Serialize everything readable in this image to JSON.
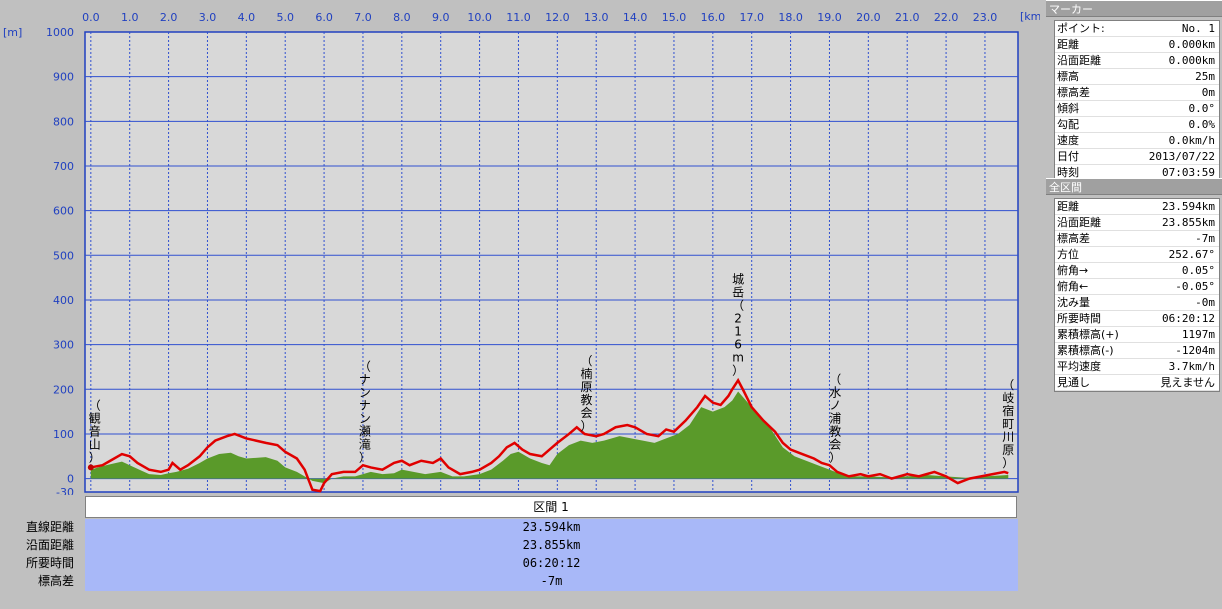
{
  "chart_data": {
    "type": "area",
    "xunit": "[km]",
    "yunit": "[m]",
    "xlim": [
      -0.15,
      23.85
    ],
    "ylim": [
      -30,
      1000
    ],
    "xticks": [
      0,
      1,
      2,
      3,
      4,
      5,
      6,
      7,
      8,
      9,
      10,
      11,
      12,
      13,
      14,
      15,
      16,
      17,
      18,
      19,
      20,
      21,
      22,
      23
    ],
    "xtick_labels": [
      "0.0",
      "1.0",
      "2.0",
      "3.0",
      "4.0",
      "5.0",
      "6.0",
      "7.0",
      "8.0",
      "9.0",
      "10.0",
      "11.0",
      "12.0",
      "13.0",
      "14.0",
      "15.0",
      "16.0",
      "17.0",
      "18.0",
      "19.0",
      "20.0",
      "21.0",
      "22.0",
      "23.0"
    ],
    "yticks": [
      -30,
      0,
      100,
      200,
      300,
      400,
      500,
      600,
      700,
      800,
      900,
      1000
    ],
    "ytick_labels": [
      "-30",
      "0",
      "100",
      "200",
      "300",
      "400",
      "500",
      "600",
      "700",
      "800",
      "900",
      "1000"
    ],
    "grid": true,
    "series": [
      {
        "name": "",
        "color": "#e00000",
        "points": [
          [
            0,
            25
          ],
          [
            0.3,
            30
          ],
          [
            0.5,
            40
          ],
          [
            0.8,
            55
          ],
          [
            1.0,
            50
          ],
          [
            1.2,
            35
          ],
          [
            1.5,
            20
          ],
          [
            1.8,
            15
          ],
          [
            2.0,
            20
          ],
          [
            2.1,
            35
          ],
          [
            2.3,
            20
          ],
          [
            2.5,
            30
          ],
          [
            2.8,
            50
          ],
          [
            3.0,
            70
          ],
          [
            3.2,
            85
          ],
          [
            3.5,
            95
          ],
          [
            3.7,
            100
          ],
          [
            4.0,
            90
          ],
          [
            4.5,
            80
          ],
          [
            4.8,
            75
          ],
          [
            5.0,
            60
          ],
          [
            5.3,
            45
          ],
          [
            5.5,
            20
          ],
          [
            5.7,
            -25
          ],
          [
            5.9,
            -28
          ],
          [
            6.0,
            -10
          ],
          [
            6.2,
            10
          ],
          [
            6.5,
            15
          ],
          [
            6.8,
            15
          ],
          [
            7.0,
            30
          ],
          [
            7.2,
            25
          ],
          [
            7.5,
            20
          ],
          [
            7.8,
            35
          ],
          [
            8.0,
            40
          ],
          [
            8.2,
            30
          ],
          [
            8.5,
            40
          ],
          [
            8.8,
            35
          ],
          [
            9.0,
            45
          ],
          [
            9.2,
            25
          ],
          [
            9.5,
            10
          ],
          [
            9.8,
            15
          ],
          [
            10.0,
            20
          ],
          [
            10.3,
            35
          ],
          [
            10.5,
            50
          ],
          [
            10.7,
            70
          ],
          [
            10.9,
            80
          ],
          [
            11.1,
            65
          ],
          [
            11.3,
            55
          ],
          [
            11.6,
            50
          ],
          [
            11.8,
            65
          ],
          [
            12.0,
            80
          ],
          [
            12.3,
            100
          ],
          [
            12.5,
            115
          ],
          [
            12.7,
            100
          ],
          [
            13.0,
            95
          ],
          [
            13.2,
            100
          ],
          [
            13.5,
            115
          ],
          [
            13.8,
            120
          ],
          [
            14.0,
            115
          ],
          [
            14.3,
            100
          ],
          [
            14.6,
            95
          ],
          [
            14.8,
            110
          ],
          [
            15.0,
            105
          ],
          [
            15.3,
            130
          ],
          [
            15.6,
            160
          ],
          [
            15.8,
            185
          ],
          [
            16.0,
            170
          ],
          [
            16.2,
            165
          ],
          [
            16.4,
            185
          ],
          [
            16.5,
            200
          ],
          [
            16.65,
            220
          ],
          [
            16.8,
            195
          ],
          [
            17.0,
            160
          ],
          [
            17.3,
            130
          ],
          [
            17.6,
            105
          ],
          [
            17.8,
            80
          ],
          [
            18.0,
            65
          ],
          [
            18.3,
            55
          ],
          [
            18.6,
            45
          ],
          [
            18.8,
            35
          ],
          [
            19.0,
            30
          ],
          [
            19.2,
            15
          ],
          [
            19.5,
            5
          ],
          [
            19.8,
            10
          ],
          [
            20.0,
            5
          ],
          [
            20.3,
            10
          ],
          [
            20.6,
            0
          ],
          [
            20.8,
            5
          ],
          [
            21.0,
            10
          ],
          [
            21.3,
            5
          ],
          [
            21.5,
            10
          ],
          [
            21.7,
            15
          ],
          [
            22.0,
            5
          ],
          [
            22.3,
            -10
          ],
          [
            22.6,
            0
          ],
          [
            22.9,
            5
          ],
          [
            23.2,
            10
          ],
          [
            23.5,
            15
          ],
          [
            23.6,
            12
          ]
        ]
      },
      {
        "name": "",
        "color": "#5a9a2a",
        "points": [
          [
            0,
            20
          ],
          [
            0.3,
            28
          ],
          [
            0.5,
            32
          ],
          [
            0.8,
            38
          ],
          [
            1.0,
            30
          ],
          [
            1.3,
            18
          ],
          [
            1.5,
            10
          ],
          [
            1.8,
            8
          ],
          [
            2.0,
            12
          ],
          [
            2.2,
            15
          ],
          [
            2.5,
            22
          ],
          [
            2.8,
            35
          ],
          [
            3.0,
            45
          ],
          [
            3.3,
            55
          ],
          [
            3.6,
            58
          ],
          [
            3.8,
            50
          ],
          [
            4.0,
            45
          ],
          [
            4.5,
            48
          ],
          [
            4.8,
            40
          ],
          [
            5.0,
            25
          ],
          [
            5.3,
            15
          ],
          [
            5.5,
            5
          ],
          [
            5.7,
            -5
          ],
          [
            6.0,
            -10
          ],
          [
            6.2,
            0
          ],
          [
            6.5,
            5
          ],
          [
            6.8,
            5
          ],
          [
            7.0,
            10
          ],
          [
            7.2,
            15
          ],
          [
            7.5,
            10
          ],
          [
            7.8,
            12
          ],
          [
            8.0,
            20
          ],
          [
            8.3,
            15
          ],
          [
            8.6,
            10
          ],
          [
            9.0,
            15
          ],
          [
            9.3,
            5
          ],
          [
            9.6,
            5
          ],
          [
            10.0,
            10
          ],
          [
            10.3,
            20
          ],
          [
            10.6,
            40
          ],
          [
            10.8,
            55
          ],
          [
            11.0,
            60
          ],
          [
            11.3,
            45
          ],
          [
            11.6,
            35
          ],
          [
            11.8,
            30
          ],
          [
            12.0,
            55
          ],
          [
            12.3,
            75
          ],
          [
            12.6,
            85
          ],
          [
            12.9,
            80
          ],
          [
            13.2,
            85
          ],
          [
            13.6,
            95
          ],
          [
            13.9,
            90
          ],
          [
            14.2,
            85
          ],
          [
            14.5,
            80
          ],
          [
            14.8,
            90
          ],
          [
            15.1,
            100
          ],
          [
            15.4,
            120
          ],
          [
            15.7,
            160
          ],
          [
            16.0,
            150
          ],
          [
            16.3,
            160
          ],
          [
            16.5,
            175
          ],
          [
            16.65,
            195
          ],
          [
            16.9,
            170
          ],
          [
            17.2,
            140
          ],
          [
            17.5,
            110
          ],
          [
            17.8,
            70
          ],
          [
            18.1,
            50
          ],
          [
            18.4,
            40
          ],
          [
            18.7,
            30
          ],
          [
            19.0,
            20
          ],
          [
            19.3,
            10
          ],
          [
            19.6,
            5
          ],
          [
            20.0,
            5
          ],
          [
            20.5,
            3
          ],
          [
            21.0,
            5
          ],
          [
            21.5,
            8
          ],
          [
            22.0,
            5
          ],
          [
            22.5,
            2
          ],
          [
            23.0,
            5
          ],
          [
            23.6,
            8
          ]
        ]
      }
    ],
    "waypoints": [
      {
        "x": 0.1,
        "y": 25,
        "label": "（観音山）"
      },
      {
        "x": 7.05,
        "y": 25,
        "label": "（ナンナン瀬滝）"
      },
      {
        "x": 12.75,
        "y": 95,
        "label": "（楠原教会）"
      },
      {
        "x": 16.65,
        "y": 220,
        "label": "城岳（216m）"
      },
      {
        "x": 19.15,
        "y": 25,
        "label": "（水ノ浦教会）"
      },
      {
        "x": 23.6,
        "y": 12,
        "label": "（岐宿町川原）"
      }
    ]
  },
  "segment": {
    "header": "区間 1",
    "rows": [
      {
        "label": "直線距離",
        "value": "23.594km"
      },
      {
        "label": "沿面距離",
        "value": "23.855km"
      },
      {
        "label": "所要時間",
        "value": "06:20:12"
      },
      {
        "label": "標高差",
        "value": "-7m"
      }
    ]
  },
  "panel": {
    "marker_title": "マーカー",
    "marker_rows": [
      {
        "k": "ポイント:",
        "v": "No. 1"
      },
      {
        "k": "距離",
        "v": "0.000km"
      },
      {
        "k": "沿面距離",
        "v": "0.000km"
      },
      {
        "k": "標高",
        "v": "25m"
      },
      {
        "k": "標高差",
        "v": "0m"
      },
      {
        "k": "傾斜",
        "v": "0.0°"
      },
      {
        "k": "勾配",
        "v": "0.0%"
      },
      {
        "k": "速度",
        "v": "0.0km/h"
      },
      {
        "k": "日付",
        "v": "2013/07/22"
      },
      {
        "k": "時刻",
        "v": "07:03:59"
      }
    ],
    "all_title": "全区間",
    "all_rows": [
      {
        "k": "距離",
        "v": "23.594km"
      },
      {
        "k": "沿面距離",
        "v": "23.855km"
      },
      {
        "k": "標高差",
        "v": "-7m"
      },
      {
        "k": "方位",
        "v": "252.67°"
      },
      {
        "k": "俯角→",
        "v": "0.05°"
      },
      {
        "k": "俯角←",
        "v": "-0.05°"
      },
      {
        "k": "沈み量",
        "v": "-0m"
      },
      {
        "k": "所要時間",
        "v": "06:20:12"
      },
      {
        "k": "累積標高(+)",
        "v": "1197m"
      },
      {
        "k": "累積標高(-)",
        "v": "-1204m"
      },
      {
        "k": "平均速度",
        "v": "3.7km/h"
      },
      {
        "k": "見通し",
        "v": "見えません"
      }
    ]
  }
}
